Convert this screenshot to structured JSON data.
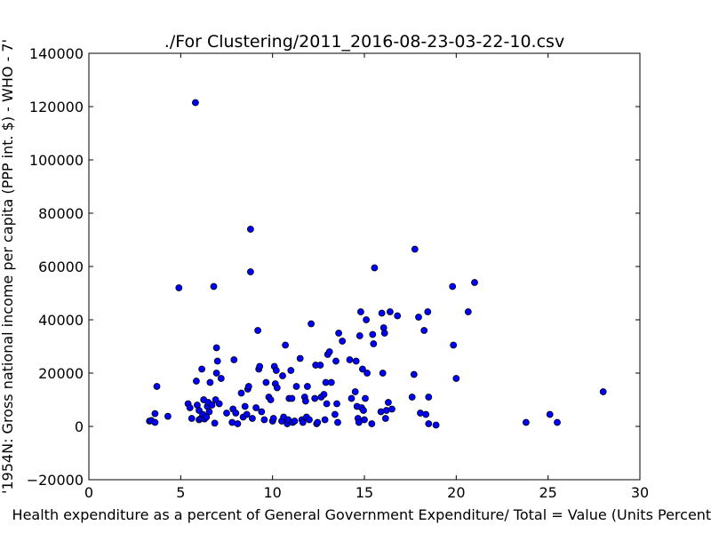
{
  "chart_data": {
    "type": "scatter",
    "title": "./For Clustering/2011_2016-08-23-03-22-10.csv",
    "xlabel": "Health expenditure as a percent of General Government Expenditure/ Total = Value (Units Percent)",
    "ylabel": "'1954N: Gross national income per capita (PPP int. $) - WHO - 7'",
    "xlim": [
      0,
      30
    ],
    "ylim": [
      -20000,
      140000
    ],
    "xticks": [
      "0",
      "5",
      "10",
      "15",
      "20",
      "25",
      "30"
    ],
    "yticks": [
      "−20000",
      "0",
      "20000",
      "40000",
      "60000",
      "80000",
      "100000",
      "120000",
      "140000"
    ],
    "grid": false,
    "marker_color": "#0000ff",
    "edge_color": "#000000",
    "points": [
      [
        3.3,
        2000
      ],
      [
        3.4,
        2200
      ],
      [
        3.6,
        1500
      ],
      [
        3.6,
        4800
      ],
      [
        3.7,
        15000
      ],
      [
        4.3,
        3800
      ],
      [
        4.9,
        52000
      ],
      [
        5.4,
        8500
      ],
      [
        5.5,
        7000
      ],
      [
        5.6,
        3000
      ],
      [
        5.8,
        121500
      ],
      [
        5.85,
        17000
      ],
      [
        5.9,
        8000
      ],
      [
        6.0,
        2500
      ],
      [
        6.0,
        6000
      ],
      [
        6.1,
        3000
      ],
      [
        6.15,
        21500
      ],
      [
        6.2,
        4500
      ],
      [
        6.25,
        10000
      ],
      [
        6.3,
        2800
      ],
      [
        6.4,
        3500
      ],
      [
        6.45,
        7500
      ],
      [
        6.5,
        9000
      ],
      [
        6.55,
        5500
      ],
      [
        6.6,
        16500
      ],
      [
        6.7,
        8000
      ],
      [
        6.8,
        52500
      ],
      [
        6.85,
        1200
      ],
      [
        6.9,
        10000
      ],
      [
        6.95,
        29500
      ],
      [
        6.95,
        20000
      ],
      [
        7.0,
        24500
      ],
      [
        7.1,
        8500
      ],
      [
        7.2,
        18000
      ],
      [
        7.5,
        5000
      ],
      [
        7.8,
        1500
      ],
      [
        7.85,
        6500
      ],
      [
        7.9,
        25000
      ],
      [
        8.0,
        5000
      ],
      [
        8.1,
        1000
      ],
      [
        8.3,
        12500
      ],
      [
        8.4,
        3500
      ],
      [
        8.5,
        7500
      ],
      [
        8.6,
        4500
      ],
      [
        8.65,
        14000
      ],
      [
        8.7,
        15000
      ],
      [
        8.8,
        58000
      ],
      [
        8.8,
        74000
      ],
      [
        8.9,
        3000
      ],
      [
        9.1,
        7000
      ],
      [
        9.2,
        36000
      ],
      [
        9.25,
        21500
      ],
      [
        9.3,
        22500
      ],
      [
        9.4,
        5500
      ],
      [
        9.55,
        2500
      ],
      [
        9.65,
        16500
      ],
      [
        9.8,
        11000
      ],
      [
        9.9,
        10000
      ],
      [
        10.0,
        2000
      ],
      [
        10.05,
        3000
      ],
      [
        10.1,
        22500
      ],
      [
        10.15,
        16000
      ],
      [
        10.2,
        21000
      ],
      [
        10.25,
        14500
      ],
      [
        10.5,
        2000
      ],
      [
        10.55,
        19000
      ],
      [
        10.6,
        3500
      ],
      [
        10.7,
        30500
      ],
      [
        10.8,
        1000
      ],
      [
        10.85,
        2500
      ],
      [
        10.9,
        10500
      ],
      [
        11.0,
        21000
      ],
      [
        11.05,
        10500
      ],
      [
        11.1,
        1500
      ],
      [
        11.2,
        2000
      ],
      [
        11.3,
        15000
      ],
      [
        11.5,
        25500
      ],
      [
        11.6,
        2500
      ],
      [
        11.65,
        1500
      ],
      [
        11.75,
        11000
      ],
      [
        11.8,
        9500
      ],
      [
        11.85,
        3500
      ],
      [
        11.9,
        15000
      ],
      [
        12.0,
        2500
      ],
      [
        12.1,
        38500
      ],
      [
        12.3,
        10500
      ],
      [
        12.35,
        23000
      ],
      [
        12.4,
        1000
      ],
      [
        12.45,
        1500
      ],
      [
        12.6,
        23000
      ],
      [
        12.65,
        11000
      ],
      [
        12.8,
        12000
      ],
      [
        12.85,
        2500
      ],
      [
        12.9,
        16500
      ],
      [
        12.95,
        8500
      ],
      [
        13.0,
        27000
      ],
      [
        13.1,
        28000
      ],
      [
        13.2,
        16500
      ],
      [
        13.4,
        4500
      ],
      [
        13.45,
        24500
      ],
      [
        13.5,
        8500
      ],
      [
        13.55,
        1500
      ],
      [
        13.6,
        35000
      ],
      [
        13.8,
        32000
      ],
      [
        14.2,
        25000
      ],
      [
        14.3,
        10500
      ],
      [
        14.5,
        13000
      ],
      [
        14.55,
        24500
      ],
      [
        14.6,
        7500
      ],
      [
        14.65,
        3000
      ],
      [
        14.7,
        1500
      ],
      [
        14.75,
        34000
      ],
      [
        14.8,
        43000
      ],
      [
        14.85,
        7000
      ],
      [
        14.9,
        21500
      ],
      [
        14.95,
        6000
      ],
      [
        15.0,
        2500
      ],
      [
        15.05,
        10500
      ],
      [
        15.1,
        40000
      ],
      [
        15.15,
        20000
      ],
      [
        15.4,
        1000
      ],
      [
        15.45,
        34500
      ],
      [
        15.5,
        31000
      ],
      [
        15.55,
        59500
      ],
      [
        15.9,
        5500
      ],
      [
        15.95,
        42500
      ],
      [
        16.0,
        20000
      ],
      [
        16.05,
        37000
      ],
      [
        16.1,
        35000
      ],
      [
        16.15,
        3000
      ],
      [
        16.2,
        6000
      ],
      [
        16.3,
        9000
      ],
      [
        16.4,
        43000
      ],
      [
        16.5,
        6500
      ],
      [
        16.8,
        41500
      ],
      [
        17.6,
        11000
      ],
      [
        17.7,
        19500
      ],
      [
        17.75,
        66500
      ],
      [
        17.95,
        41000
      ],
      [
        18.05,
        5000
      ],
      [
        18.25,
        36000
      ],
      [
        18.35,
        4500
      ],
      [
        18.45,
        43000
      ],
      [
        18.5,
        11000
      ],
      [
        18.5,
        1000
      ],
      [
        18.9,
        500
      ],
      [
        19.8,
        52500
      ],
      [
        19.85,
        30500
      ],
      [
        20.0,
        18000
      ],
      [
        20.65,
        43000
      ],
      [
        21.0,
        54000
      ],
      [
        23.8,
        1500
      ],
      [
        25.1,
        4500
      ],
      [
        25.5,
        1500
      ],
      [
        28.0,
        13000
      ]
    ]
  }
}
